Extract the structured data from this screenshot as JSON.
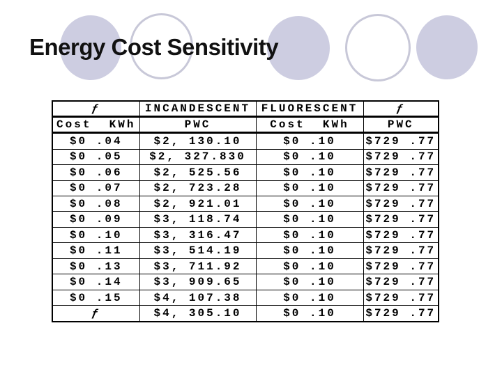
{
  "slide": {
    "title": "Energy Cost Sensitivity"
  },
  "colors": {
    "circle_fill": "#cdcde1",
    "circle_outline": "#c8c8d8",
    "title_color": "#111111",
    "table_border": "#000000"
  },
  "table": {
    "f_symbol": "ƒ",
    "header_row": [
      "ƒ",
      "INCANDESCENT",
      "FLUORESCENT",
      "ƒ"
    ],
    "subheader_row": [
      "Cost  KWh",
      "PWC",
      "Cost  KWh",
      "PWC"
    ],
    "rows": [
      [
        "$0 .04",
        "$2, 130.10",
        "$0 .10",
        "$729 .77"
      ],
      [
        "$0 .05",
        "$2, 327.830",
        "$0 .10",
        "$729 .77"
      ],
      [
        "$0 .06",
        "$2, 525.56",
        "$0 .10",
        "$729 .77"
      ],
      [
        "$0 .07",
        "$2, 723.28",
        "$0 .10",
        "$729 .77"
      ],
      [
        "$0 .08",
        "$2, 921.01",
        "$0 .10",
        "$729 .77"
      ],
      [
        "$0 .09",
        "$3, 118.74",
        "$0 .10",
        "$729 .77"
      ],
      [
        "$0 .10",
        "$3, 316.47",
        "$0 .10",
        "$729 .77"
      ],
      [
        "$0 .11",
        "$3, 514.19",
        "$0 .10",
        "$729 .77"
      ],
      [
        "$0 .13",
        "$3, 711.92",
        "$0 .10",
        "$729 .77"
      ],
      [
        "$0 .14",
        "$3, 909.65",
        "$0 .10",
        "$729 .77"
      ],
      [
        "$0 .15",
        "$4, 107.38",
        "$0 .10",
        "$729 .77"
      ],
      [
        "ƒ",
        "$4, 305.10",
        "$0 .10",
        "$729 .77"
      ]
    ]
  }
}
